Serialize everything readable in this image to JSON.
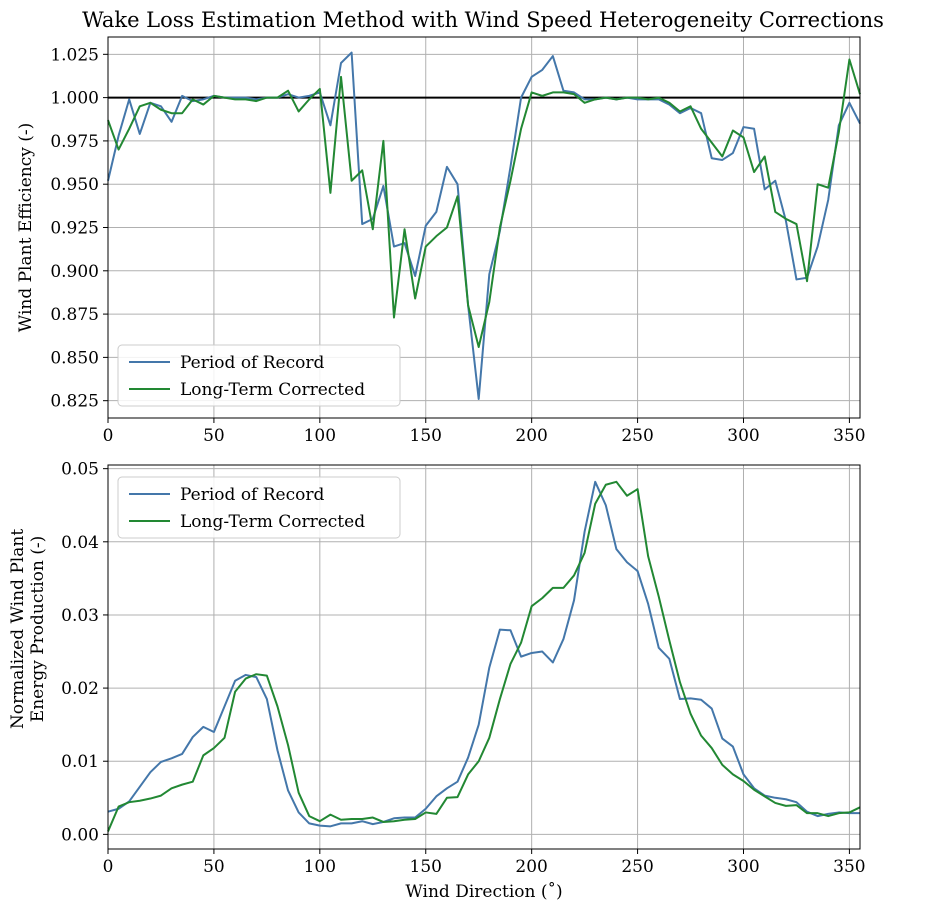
{
  "title": "Wake Loss Estimation Method with Wind Speed Heterogeneity Corrections",
  "colors": {
    "por": "#4477aa",
    "lt": "#228833",
    "grid": "#b0b0b0",
    "ref": "#000000"
  },
  "chart_data": [
    {
      "type": "line",
      "ylabel": "Wind Plant Efficiency (-)",
      "xlabel": "",
      "xlim": [
        0,
        355
      ],
      "ylim": [
        0.815,
        1.035
      ],
      "xticks": [
        "0",
        "50",
        "100",
        "150",
        "200",
        "250",
        "300",
        "350"
      ],
      "yticks": [
        "0.825",
        "0.850",
        "0.875",
        "0.900",
        "0.925",
        "0.950",
        "0.975",
        "1.000",
        "1.025"
      ],
      "grid": true,
      "reference_line": 1.0,
      "legend": "lower-left",
      "x": [
        0,
        5,
        10,
        15,
        20,
        25,
        30,
        35,
        40,
        45,
        50,
        55,
        60,
        65,
        70,
        75,
        80,
        85,
        90,
        95,
        100,
        105,
        110,
        115,
        120,
        125,
        130,
        135,
        140,
        145,
        150,
        155,
        160,
        165,
        170,
        175,
        180,
        185,
        190,
        195,
        200,
        205,
        210,
        215,
        220,
        225,
        230,
        235,
        240,
        245,
        250,
        255,
        260,
        265,
        270,
        275,
        280,
        285,
        290,
        295,
        300,
        305,
        310,
        315,
        320,
        325,
        330,
        335,
        340,
        345,
        350,
        355
      ],
      "series": [
        {
          "name": "Period of Record",
          "values": [
            0.952,
            0.978,
            0.999,
            0.979,
            0.997,
            0.995,
            0.986,
            1.001,
            0.998,
            0.999,
            1.001,
            1.0,
            1.0,
            1.0,
            0.999,
            1.0,
            1.0,
            1.002,
            1.0,
            1.001,
            1.003,
            0.984,
            1.02,
            1.026,
            0.927,
            0.93,
            0.949,
            0.914,
            0.916,
            0.897,
            0.926,
            0.934,
            0.96,
            0.95,
            0.88,
            0.826,
            0.898,
            0.923,
            0.96,
            1.0,
            1.012,
            1.016,
            1.024,
            1.004,
            1.003,
            0.999,
            0.999,
            1.0,
            0.999,
            1.0,
            0.999,
            0.999,
            0.999,
            0.996,
            0.991,
            0.994,
            0.991,
            0.965,
            0.964,
            0.968,
            0.983,
            0.982,
            0.947,
            0.952,
            0.929,
            0.895,
            0.896,
            0.914,
            0.941,
            0.984,
            0.997,
            0.985
          ]
        },
        {
          "name": "Long-Term Corrected",
          "values": [
            0.987,
            0.97,
            0.982,
            0.995,
            0.997,
            0.993,
            0.991,
            0.991,
            0.999,
            0.996,
            1.001,
            1.0,
            0.999,
            0.999,
            0.998,
            1.0,
            1.0,
            1.004,
            0.992,
            0.999,
            1.005,
            0.945,
            1.012,
            0.952,
            0.958,
            0.924,
            0.975,
            0.873,
            0.924,
            0.884,
            0.914,
            0.92,
            0.925,
            0.943,
            0.88,
            0.856,
            0.882,
            0.925,
            0.952,
            0.982,
            1.003,
            1.001,
            1.003,
            1.003,
            1.002,
            0.997,
            0.999,
            1.0,
            0.999,
            1.0,
            1.0,
            0.999,
            1.0,
            0.997,
            0.992,
            0.995,
            0.982,
            0.974,
            0.966,
            0.981,
            0.977,
            0.957,
            0.966,
            0.934,
            0.93,
            0.927,
            0.894,
            0.95,
            0.948,
            0.98,
            1.022,
            1.002
          ]
        }
      ]
    },
    {
      "type": "line",
      "ylabel": "Normalized Wind Plant\nEnergy Production (-)",
      "xlabel": "Wind Direction ($^\\circ$)",
      "xlabel_display": "Wind Direction (˚)",
      "xlim": [
        0,
        355
      ],
      "ylim": [
        -0.002,
        0.0505
      ],
      "xticks": [
        "0",
        "50",
        "100",
        "150",
        "200",
        "250",
        "300",
        "350"
      ],
      "yticks": [
        "0.00",
        "0.01",
        "0.02",
        "0.03",
        "0.04",
        "0.05"
      ],
      "grid": true,
      "legend": "upper-left",
      "x": [
        0,
        5,
        10,
        15,
        20,
        25,
        30,
        35,
        40,
        45,
        50,
        55,
        60,
        65,
        70,
        75,
        80,
        85,
        90,
        95,
        100,
        105,
        110,
        115,
        120,
        125,
        130,
        135,
        140,
        145,
        150,
        155,
        160,
        165,
        170,
        175,
        180,
        185,
        190,
        195,
        200,
        205,
        210,
        215,
        220,
        225,
        230,
        235,
        240,
        245,
        250,
        255,
        260,
        265,
        270,
        275,
        280,
        285,
        290,
        295,
        300,
        305,
        310,
        315,
        320,
        325,
        330,
        335,
        340,
        345,
        350,
        355
      ],
      "series": [
        {
          "name": "Period of Record",
          "values": [
            0.0031,
            0.0035,
            0.0045,
            0.0065,
            0.0085,
            0.0099,
            0.0104,
            0.011,
            0.0133,
            0.0147,
            0.014,
            0.0175,
            0.021,
            0.0218,
            0.0215,
            0.0185,
            0.0115,
            0.006,
            0.003,
            0.0015,
            0.0012,
            0.0011,
            0.0015,
            0.0015,
            0.0018,
            0.0014,
            0.0017,
            0.0022,
            0.0023,
            0.0023,
            0.0035,
            0.0052,
            0.0063,
            0.0072,
            0.0105,
            0.015,
            0.0228,
            0.028,
            0.0279,
            0.0243,
            0.0248,
            0.025,
            0.0235,
            0.0267,
            0.032,
            0.0414,
            0.0482,
            0.045,
            0.039,
            0.0372,
            0.036,
            0.0315,
            0.0255,
            0.024,
            0.0185,
            0.0186,
            0.0184,
            0.0172,
            0.0131,
            0.012,
            0.0082,
            0.0063,
            0.0053,
            0.005,
            0.0048,
            0.0044,
            0.0031,
            0.0025,
            0.0028,
            0.003,
            0.0029,
            0.0029
          ]
        },
        {
          "name": "Long-Term Corrected",
          "values": [
            0.0004,
            0.0038,
            0.0044,
            0.0046,
            0.0049,
            0.0053,
            0.0063,
            0.0068,
            0.0072,
            0.0108,
            0.0118,
            0.0132,
            0.0195,
            0.0213,
            0.0219,
            0.0217,
            0.0175,
            0.0122,
            0.0057,
            0.0025,
            0.0018,
            0.0027,
            0.002,
            0.0021,
            0.0021,
            0.0023,
            0.0017,
            0.0018,
            0.002,
            0.0021,
            0.003,
            0.0028,
            0.005,
            0.0051,
            0.0082,
            0.01,
            0.0132,
            0.0185,
            0.0233,
            0.0262,
            0.0312,
            0.0323,
            0.0337,
            0.0337,
            0.0354,
            0.0385,
            0.0452,
            0.0478,
            0.0482,
            0.0463,
            0.0472,
            0.038,
            0.0325,
            0.0265,
            0.0208,
            0.0165,
            0.0135,
            0.0118,
            0.0095,
            0.0082,
            0.0073,
            0.0061,
            0.0052,
            0.0043,
            0.0039,
            0.004,
            0.0029,
            0.0029,
            0.0025,
            0.0029,
            0.003,
            0.0037
          ]
        }
      ]
    }
  ]
}
